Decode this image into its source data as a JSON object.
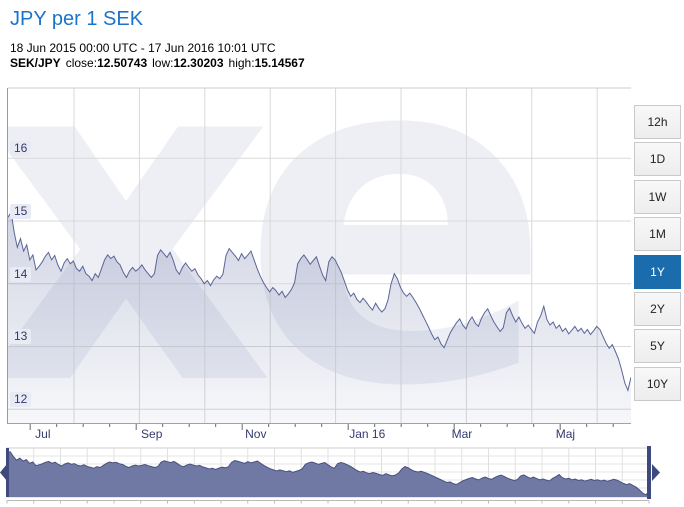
{
  "header": {
    "title": "JPY per 1 SEK",
    "date_range": "18 Jun 2015 00:00 UTC - 17 Jun 2016 10:01 UTC",
    "pair": "SEK/JPY",
    "close_label": "close:",
    "close": "12.50743",
    "low_label": "low:",
    "low": "12.30203",
    "high_label": "high:",
    "high": "15.14567"
  },
  "range_buttons": {
    "items": [
      "12h",
      "1D",
      "1W",
      "1M",
      "1Y",
      "2Y",
      "5Y",
      "10Y"
    ],
    "active": "1Y"
  },
  "colors": {
    "title_blue": "#1b74cb",
    "active_button_bg": "#1b6cad",
    "series_line": "#5a6597",
    "series_fill_base": "#5c679c",
    "navigator_fill": "#68719f",
    "navigator_handle": "#3e4a7d",
    "axis_label_navy": "#333a6e",
    "gridline_gray": "#d9d9d9",
    "watermark_gray": "#edeff5"
  },
  "chart_data": {
    "type": "area",
    "title": "JPY per 1 SEK",
    "series_name": "SEK/JPY",
    "x_range": [
      "18 Jun 2015 00:00 UTC",
      "17 Jun 2016 10:01 UTC"
    ],
    "ylim": [
      11.78,
      17.12
    ],
    "yticks": [
      16,
      15,
      14,
      13,
      12
    ],
    "xticks": [
      {
        "label": "Jul",
        "f": 0.0356
      },
      {
        "label": "Sep",
        "f": 0.2055
      },
      {
        "label": "Nov",
        "f": 0.3726
      },
      {
        "label": "Jan 16",
        "f": 0.5397
      },
      {
        "label": "Mar",
        "f": 0.7041
      },
      {
        "label": "Maj",
        "f": 0.8712
      }
    ],
    "close": 12.50743,
    "low": 12.30203,
    "high": 15.14567,
    "values": [
      15.06,
      15.14,
      14.82,
      14.58,
      14.72,
      14.52,
      14.62,
      14.38,
      14.46,
      14.22,
      14.28,
      14.35,
      14.44,
      14.5,
      14.38,
      14.45,
      14.3,
      14.2,
      14.33,
      14.4,
      14.32,
      14.36,
      14.24,
      14.2,
      14.28,
      14.16,
      14.12,
      14.05,
      14.16,
      14.1,
      14.24,
      14.38,
      14.46,
      14.4,
      14.44,
      14.35,
      14.3,
      14.18,
      14.1,
      14.2,
      14.26,
      14.2,
      14.24,
      14.3,
      14.22,
      14.16,
      14.1,
      14.16,
      14.45,
      14.54,
      14.48,
      14.42,
      14.5,
      14.38,
      14.22,
      14.15,
      14.26,
      14.33,
      14.26,
      14.2,
      14.24,
      14.14,
      14.08,
      14.0,
      14.05,
      13.97,
      14.06,
      14.12,
      14.08,
      14.15,
      14.45,
      14.56,
      14.5,
      14.44,
      14.37,
      14.48,
      14.4,
      14.46,
      14.52,
      14.38,
      14.24,
      14.12,
      14.02,
      13.94,
      13.87,
      13.94,
      13.89,
      13.82,
      13.88,
      13.78,
      13.84,
      13.91,
      14.02,
      14.32,
      14.4,
      14.46,
      14.39,
      14.31,
      14.37,
      14.43,
      14.28,
      14.14,
      14.05,
      14.35,
      14.43,
      14.38,
      14.28,
      14.18,
      14.04,
      13.9,
      13.8,
      13.85,
      13.75,
      13.7,
      13.77,
      13.71,
      13.64,
      13.58,
      13.69,
      13.61,
      13.55,
      13.6,
      13.74,
      14.0,
      14.16,
      14.08,
      13.94,
      13.85,
      13.8,
      13.85,
      13.78,
      13.7,
      13.61,
      13.51,
      13.41,
      13.31,
      13.2,
      13.11,
      13.15,
      13.04,
      12.98,
      13.1,
      13.22,
      13.3,
      13.38,
      13.44,
      13.34,
      13.28,
      13.4,
      13.47,
      13.37,
      13.32,
      13.45,
      13.54,
      13.6,
      13.49,
      13.39,
      13.31,
      13.24,
      13.3,
      13.54,
      13.61,
      13.49,
      13.39,
      13.47,
      13.37,
      13.29,
      13.34,
      13.27,
      13.21,
      13.39,
      13.49,
      13.64,
      13.43,
      13.34,
      13.39,
      13.29,
      13.34,
      13.24,
      13.29,
      13.2,
      13.26,
      13.32,
      13.24,
      13.29,
      13.21,
      13.27,
      13.19,
      13.25,
      13.32,
      13.27,
      13.16,
      13.05,
      12.97,
      13.03,
      12.92,
      12.8,
      12.62,
      12.42,
      12.3,
      12.51
    ]
  }
}
